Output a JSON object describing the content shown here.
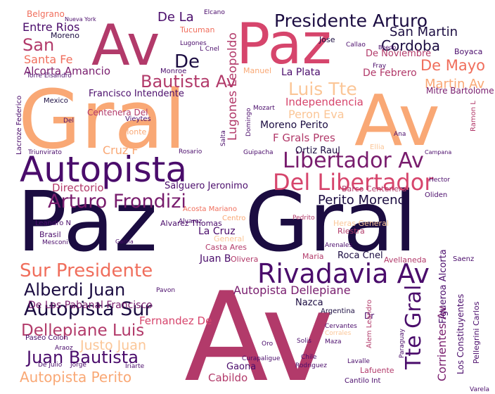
{
  "word_cloud": {
    "colors": {
      "dark_purple": "#1b0c41",
      "violet": "#4a0c6b",
      "purple": "#781c6d",
      "magenta": "#b23a6a",
      "rose": "#d6456c",
      "coral": "#f06e5c",
      "peach": "#f9a875",
      "light_peach": "#fbc697"
    },
    "words": [
      {
        "text": "Av",
        "color": "magenta"
      },
      {
        "text": "Paz",
        "color": "dark_purple"
      },
      {
        "text": "Gral",
        "color": "peach"
      },
      {
        "text": "Av",
        "color": "peach"
      },
      {
        "text": "Gral",
        "color": "dark_purple"
      },
      {
        "text": "Av",
        "color": "magenta"
      },
      {
        "text": "Paz",
        "color": "rose"
      },
      {
        "text": "Autopista",
        "color": "violet"
      },
      {
        "text": "Rivadavia Av",
        "color": "violet"
      },
      {
        "text": "Libertador Av",
        "color": "purple"
      },
      {
        "text": "Del Libertador",
        "color": "rose"
      },
      {
        "text": "Arturo Frondizi",
        "color": "purple"
      },
      {
        "text": "Presidente Arturo",
        "color": "dark_purple"
      },
      {
        "text": "Autopista Sur",
        "color": "dark_purple"
      },
      {
        "text": "Sur Presidente",
        "color": "coral"
      },
      {
        "text": "Alberdi Juan",
        "color": "dark_purple"
      },
      {
        "text": "Juan Bautista",
        "color": "violet"
      },
      {
        "text": "Dellepiane Luis",
        "color": "magenta"
      },
      {
        "text": "Tte Gral",
        "color": "violet"
      },
      {
        "text": "Luis Tte",
        "color": "light_peach"
      },
      {
        "text": "Bautista Av",
        "color": "magenta"
      },
      {
        "text": "De Mayo",
        "color": "coral"
      },
      {
        "text": "Cordoba",
        "color": "dark_purple"
      },
      {
        "text": "San Martin",
        "color": "dark_purple"
      },
      {
        "text": "Perito Moreno",
        "color": "dark_purple"
      },
      {
        "text": "Autopista Dellepiane",
        "color": "purple"
      },
      {
        "text": "Autopista Perito",
        "color": "peach"
      },
      {
        "text": "De Los Pabanal Francisco",
        "color": "purple"
      },
      {
        "text": "Fernandez De",
        "color": "rose"
      },
      {
        "text": "Justo Juan",
        "color": "light_peach"
      },
      {
        "text": "Corrientes Av",
        "color": "purple"
      },
      {
        "text": "Entre Rios",
        "color": "violet"
      },
      {
        "text": "San",
        "color": "magenta"
      },
      {
        "text": "Santa Fe",
        "color": "coral"
      },
      {
        "text": "Alcorta Amancio",
        "color": "purple"
      },
      {
        "text": "Francisco Intendente",
        "color": "violet"
      },
      {
        "text": "La Plata",
        "color": "violet"
      },
      {
        "text": "De Febrero",
        "color": "magenta"
      },
      {
        "text": "Martin Av",
        "color": "peach"
      },
      {
        "text": "Independencia",
        "color": "rose"
      },
      {
        "text": "Peron Eva",
        "color": "light_peach"
      },
      {
        "text": "Lugones Leopoldo",
        "color": "magenta"
      },
      {
        "text": "Moreno Perito",
        "color": "dark_purple"
      },
      {
        "text": "F Grals Pres",
        "color": "magenta"
      },
      {
        "text": "Directorio",
        "color": "magenta"
      },
      {
        "text": "Salguero Jeronimo",
        "color": "violet"
      },
      {
        "text": "Cruz F",
        "color": "peach"
      },
      {
        "text": "La Cruz",
        "color": "violet"
      },
      {
        "text": "Alvarez Thomas",
        "color": "violet"
      },
      {
        "text": "Barco Centenera",
        "color": "magenta"
      },
      {
        "text": "Brasil",
        "color": "violet"
      },
      {
        "text": "Roca Cnel",
        "color": "dark_purple"
      },
      {
        "text": "Figueroa Alcorta",
        "color": "violet"
      },
      {
        "text": "Los Constituyentes",
        "color": "violet"
      },
      {
        "text": "Pellegrini Carlos",
        "color": "violet"
      },
      {
        "text": "Cabildo",
        "color": "magenta"
      },
      {
        "text": "Gaona",
        "color": "violet"
      },
      {
        "text": "Centenera Del",
        "color": "magenta"
      },
      {
        "text": "Ortiz Raul",
        "color": "dark_purple"
      },
      {
        "text": "Mitre Bartolome",
        "color": "purple"
      },
      {
        "text": "De Noviembre",
        "color": "magenta"
      },
      {
        "text": "Belgrano",
        "color": "coral"
      },
      {
        "text": "Moreno",
        "color": "dark_purple"
      },
      {
        "text": "Monroe",
        "color": "violet"
      },
      {
        "text": "De",
        "color": "dark_purple"
      },
      {
        "text": "De La",
        "color": "violet"
      },
      {
        "text": "Jose",
        "color": "dark_purple"
      },
      {
        "text": "Boyaca",
        "color": "violet"
      },
      {
        "text": "Mexico",
        "color": "dark_purple"
      },
      {
        "text": "Rosario",
        "color": "violet"
      },
      {
        "text": "Juan B",
        "color": "violet"
      },
      {
        "text": "Olivera",
        "color": "magenta"
      },
      {
        "text": "Riestra",
        "color": "magenta"
      },
      {
        "text": "Nazca",
        "color": "dark_purple"
      },
      {
        "text": "Paseo Colon",
        "color": "violet"
      },
      {
        "text": "Argentina",
        "color": "dark_purple"
      },
      {
        "text": "Curapaligue",
        "color": "violet"
      },
      {
        "text": "Rodriguez",
        "color": "violet"
      },
      {
        "text": "Lafuente",
        "color": "magenta"
      },
      {
        "text": "Cantilo Int",
        "color": "violet"
      },
      {
        "text": "De Julio",
        "color": "violet"
      },
      {
        "text": "Casta Ares",
        "color": "magenta"
      },
      {
        "text": "Acosta Mariano",
        "color": "coral"
      },
      {
        "text": "Pedrito",
        "color": "magenta"
      },
      {
        "text": "Oliden",
        "color": "violet"
      },
      {
        "text": "Tucuman",
        "color": "coral"
      },
      {
        "text": "Lugones",
        "color": "violet"
      },
      {
        "text": "L Cnel",
        "color": "violet"
      },
      {
        "text": "Callao",
        "color": "violet"
      },
      {
        "text": "Manuel",
        "color": "peach"
      },
      {
        "text": "Domingo",
        "color": "violet"
      },
      {
        "text": "Triunvirato",
        "color": "violet"
      },
      {
        "text": "Torre Elsandro",
        "color": "violet"
      },
      {
        "text": "Lacroze Federico",
        "color": "violet"
      },
      {
        "text": "Vieytes",
        "color": "violet"
      },
      {
        "text": "Monte",
        "color": "peach"
      },
      {
        "text": "Mozart",
        "color": "violet"
      },
      {
        "text": "Salta",
        "color": "violet"
      },
      {
        "text": "Guipacha",
        "color": "violet"
      },
      {
        "text": "Ellia",
        "color": "light_peach"
      },
      {
        "text": "Ana",
        "color": "violet"
      },
      {
        "text": "Maria",
        "color": "magenta"
      },
      {
        "text": "Avellaneda",
        "color": "magenta"
      },
      {
        "text": "Saenz",
        "color": "violet"
      },
      {
        "text": "Dr",
        "color": "violet"
      },
      {
        "text": "Solis",
        "color": "violet"
      },
      {
        "text": "Maza",
        "color": "violet"
      },
      {
        "text": "Araoz",
        "color": "violet"
      },
      {
        "text": "Jorge",
        "color": "violet"
      },
      {
        "text": "Iriarte",
        "color": "violet"
      },
      {
        "text": "Oro",
        "color": "violet"
      },
      {
        "text": "Chile",
        "color": "violet"
      },
      {
        "text": "Lavalle",
        "color": "violet"
      },
      {
        "text": "Elcano",
        "color": "violet"
      },
      {
        "text": "Nueva York",
        "color": "violet"
      },
      {
        "text": "Fray",
        "color": "violet"
      },
      {
        "text": "General",
        "color": "light_peach"
      },
      {
        "text": "Centro",
        "color": "peach"
      },
      {
        "text": "Leandro N",
        "color": "violet"
      },
      {
        "text": "Mesconi",
        "color": "violet"
      },
      {
        "text": "Alem Leandro",
        "color": "magenta"
      },
      {
        "text": "Heras General",
        "color": "light_peach"
      },
      {
        "text": "Del",
        "color": "violet"
      },
      {
        "text": "Hector",
        "color": "violet"
      },
      {
        "text": "Pavon",
        "color": "violet"
      },
      {
        "text": "Cervantes",
        "color": "violet"
      },
      {
        "text": "Corrales",
        "color": "light_peach"
      },
      {
        "text": "Varela",
        "color": "violet"
      },
      {
        "text": "Boedo",
        "color": "violet"
      },
      {
        "text": "Campana",
        "color": "violet"
      },
      {
        "text": "Paraguay",
        "color": "violet"
      },
      {
        "text": "Arenales",
        "color": "violet"
      },
      {
        "text": "Alvarez",
        "color": "violet"
      },
      {
        "text": "Garcia",
        "color": "violet"
      },
      {
        "text": "Ramon L",
        "color": "magenta"
      }
    ]
  }
}
